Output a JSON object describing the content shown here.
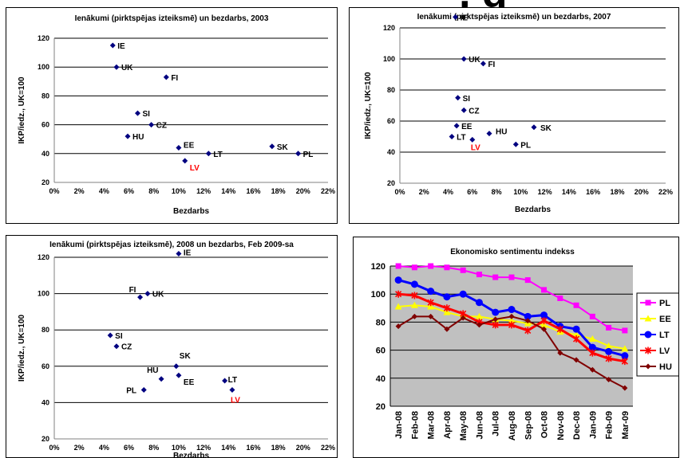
{
  "page": {
    "cut_off_title": ", g"
  },
  "chart_data": [
    {
      "type": "scatter",
      "title": "Ienākumi (pirktspējas izteiksmē) un bezdarbs, 2003",
      "xlabel": "Bezdarbs",
      "ylabel": "IKP/iedz., UK=100",
      "xlim": [
        0,
        22
      ],
      "ylim": [
        20,
        120
      ],
      "x_ticks": [
        "0%",
        "2%",
        "4%",
        "6%",
        "8%",
        "10%",
        "12%",
        "14%",
        "16%",
        "18%",
        "20%",
        "22%"
      ],
      "y_ticks": [
        "20",
        "40",
        "60",
        "80",
        "100",
        "120"
      ],
      "grid": "horizontal",
      "points": [
        {
          "label": "IE",
          "x": 4.7,
          "y": 115,
          "color": "#000000"
        },
        {
          "label": "UK",
          "x": 5.0,
          "y": 100,
          "color": "#000000"
        },
        {
          "label": "FI",
          "x": 9.0,
          "y": 93,
          "color": "#000000"
        },
        {
          "label": "SI",
          "x": 6.7,
          "y": 68,
          "color": "#000000"
        },
        {
          "label": "CZ",
          "x": 7.8,
          "y": 60,
          "color": "#000000"
        },
        {
          "label": "HU",
          "x": 5.9,
          "y": 52,
          "color": "#000000"
        },
        {
          "label": "EE",
          "x": 10.0,
          "y": 44,
          "color": "#000000"
        },
        {
          "label": "LT",
          "x": 12.4,
          "y": 40,
          "color": "#000000"
        },
        {
          "label": "LV",
          "x": 10.5,
          "y": 35,
          "color": "#ff0000"
        },
        {
          "label": "SK",
          "x": 17.5,
          "y": 45,
          "color": "#000000"
        },
        {
          "label": "PL",
          "x": 19.6,
          "y": 40,
          "color": "#000000"
        }
      ]
    },
    {
      "type": "scatter",
      "title": "Ienākumi (pirktspējas izteiksmē) un bezdarbs, 2007",
      "xlabel": "Bezdarbs",
      "ylabel": "IKP/iedz., UK=100",
      "xlim": [
        0,
        22
      ],
      "ylim": [
        20,
        120
      ],
      "x_ticks": [
        "0%",
        "2%",
        "4%",
        "6%",
        "8%",
        "10%",
        "12%",
        "14%",
        "16%",
        "18%",
        "20%",
        "22%"
      ],
      "y_ticks": [
        "20",
        "40",
        "60",
        "80",
        "100",
        "120"
      ],
      "grid": "horizontal",
      "points": [
        {
          "label": "IE",
          "x": 4.6,
          "y": 127,
          "color": "#000000"
        },
        {
          "label": "UK",
          "x": 5.3,
          "y": 100,
          "color": "#000000"
        },
        {
          "label": "FI",
          "x": 6.9,
          "y": 97,
          "color": "#000000"
        },
        {
          "label": "SI",
          "x": 4.8,
          "y": 75,
          "color": "#000000"
        },
        {
          "label": "CZ",
          "x": 5.3,
          "y": 67,
          "color": "#000000"
        },
        {
          "label": "EE",
          "x": 4.7,
          "y": 57,
          "color": "#000000"
        },
        {
          "label": "HU",
          "x": 7.4,
          "y": 52,
          "color": "#000000"
        },
        {
          "label": "SK",
          "x": 11.1,
          "y": 56,
          "color": "#000000"
        },
        {
          "label": "LT",
          "x": 4.3,
          "y": 50,
          "color": "#000000"
        },
        {
          "label": "LV",
          "x": 6.0,
          "y": 48,
          "color": "#ff0000"
        },
        {
          "label": "PL",
          "x": 9.6,
          "y": 45,
          "color": "#000000"
        }
      ]
    },
    {
      "type": "scatter",
      "title": "Ienākumi (pirktspējas izteiksmē), 2008 un bezdarbs, Feb 2009-sa",
      "xlabel": "Bezdarbs",
      "ylabel": "IKP/iedz., UK=100",
      "xlim": [
        0,
        22
      ],
      "ylim": [
        20,
        120
      ],
      "x_ticks": [
        "0%",
        "2%",
        "4%",
        "6%",
        "8%",
        "10%",
        "12%",
        "14%",
        "16%",
        "18%",
        "20%",
        "22%"
      ],
      "y_ticks": [
        "20",
        "40",
        "60",
        "80",
        "100",
        "120"
      ],
      "grid": "horizontal",
      "points": [
        {
          "label": "IE",
          "x": 10.0,
          "y": 122,
          "color": "#000000"
        },
        {
          "label": "FI",
          "x": 6.9,
          "y": 98,
          "color": "#000000"
        },
        {
          "label": "UK",
          "x": 7.5,
          "y": 100,
          "color": "#000000"
        },
        {
          "label": "SI",
          "x": 4.5,
          "y": 77,
          "color": "#000000"
        },
        {
          "label": "CZ",
          "x": 5.0,
          "y": 71,
          "color": "#000000"
        },
        {
          "label": "SK",
          "x": 9.8,
          "y": 60,
          "color": "#000000"
        },
        {
          "label": "HU",
          "x": 8.6,
          "y": 53,
          "color": "#000000"
        },
        {
          "label": "EE",
          "x": 10.0,
          "y": 55,
          "color": "#000000"
        },
        {
          "label": "PL",
          "x": 7.2,
          "y": 47,
          "color": "#000000"
        },
        {
          "label": "LT",
          "x": 13.7,
          "y": 52,
          "color": "#000000"
        },
        {
          "label": "LV",
          "x": 14.3,
          "y": 47,
          "color": "#ff0000"
        }
      ]
    },
    {
      "type": "line",
      "title": "Ekonomisko sentimentu indekss",
      "categories": [
        "Jan-08",
        "Feb-08",
        "Mar-08",
        "Apr-08",
        "May-08",
        "Jun-08",
        "Jul-08",
        "Aug-08",
        "Sep-08",
        "Oct-08",
        "Nov-08",
        "Dec-08",
        "Jan-09",
        "Feb-09",
        "Mar-09"
      ],
      "ylim": [
        20,
        120
      ],
      "y_ticks": [
        "20",
        "40",
        "60",
        "80",
        "100",
        "120"
      ],
      "grid": "horizontal",
      "plot_background": "#c0c0c0",
      "legend": "right",
      "series": [
        {
          "name": "PL",
          "color": "#ff00ff",
          "marker": "square",
          "values": [
            120,
            119,
            120,
            119,
            117,
            114,
            112,
            112,
            110,
            103,
            97,
            92,
            84,
            76,
            74
          ]
        },
        {
          "name": "EE",
          "color": "#ffff00",
          "marker": "triangle",
          "values": [
            91,
            92,
            91,
            87,
            84,
            84,
            82,
            81,
            79,
            78,
            73,
            71,
            68,
            63,
            61
          ]
        },
        {
          "name": "LT",
          "color": "#0000ff",
          "marker": "circle",
          "values": [
            110,
            107,
            102,
            98,
            100,
            94,
            87,
            89,
            84,
            85,
            77,
            75,
            62,
            59,
            56
          ]
        },
        {
          "name": "LV",
          "color": "#ff0000",
          "marker": "star",
          "values": [
            100,
            99,
            94,
            90,
            86,
            80,
            78,
            78,
            74,
            81,
            75,
            68,
            58,
            54,
            52
          ]
        },
        {
          "name": "HU",
          "color": "#800000",
          "marker": "diamond",
          "values": [
            77,
            84,
            84,
            75,
            83,
            78,
            82,
            84,
            81,
            75,
            58,
            53,
            46,
            39,
            33
          ]
        }
      ]
    }
  ]
}
